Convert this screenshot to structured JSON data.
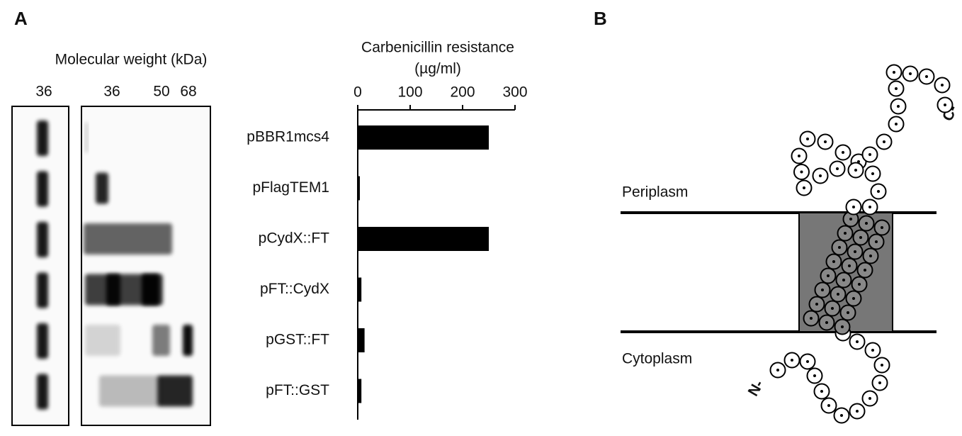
{
  "panels": {
    "a": "A",
    "b": "B"
  },
  "gel": {
    "title": "Molecular weight (kDa)",
    "markers_left": [
      "36"
    ],
    "markers_right": [
      "36",
      "50",
      "68"
    ]
  },
  "chart_data": {
    "type": "bar",
    "orientation": "horizontal",
    "title": "Carbenicillin resistance",
    "subtitle": "(µg/ml)",
    "categories": [
      "pBBR1mcs4",
      "pFlagTEM1",
      "pCydX::FT",
      "pFT::CydX",
      "pGST::FT",
      "pFT::GST"
    ],
    "values": [
      250,
      4,
      250,
      7,
      13,
      7
    ],
    "color": "#000000",
    "xlim": [
      0,
      300
    ],
    "xticks": [
      0,
      100,
      200,
      300
    ]
  },
  "diagram": {
    "top_label": "Periplasm",
    "bottom_label": "Cytoplasm",
    "n_label": "N-",
    "c_label": "C-"
  }
}
